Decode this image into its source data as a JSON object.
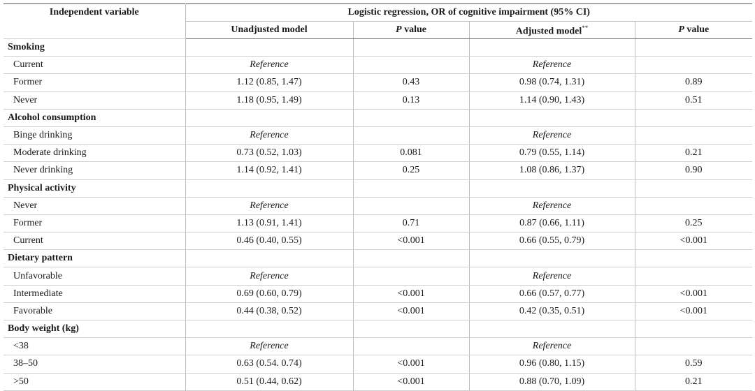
{
  "header": {
    "col_var": "Independent variable",
    "group": "Logistic regression, OR of cognitive impairment (95% CI)",
    "unadjusted": "Unadjusted model",
    "p_letter": "P",
    "p_suffix": " value",
    "adjusted": "Adjusted model",
    "adjusted_mark": "**"
  },
  "rows": [
    {
      "kind": "group",
      "label": "Smoking"
    },
    {
      "kind": "item",
      "label": "Current",
      "unadj": "Reference",
      "p1": "",
      "adj": "Reference",
      "p2": "",
      "ref": true
    },
    {
      "kind": "item",
      "label": "Former",
      "unadj": "1.12 (0.85, 1.47)",
      "p1": "0.43",
      "adj": "0.98 (0.74, 1.31)",
      "p2": "0.89"
    },
    {
      "kind": "item",
      "label": "Never",
      "unadj": "1.18 (0.95, 1.49)",
      "p1": "0.13",
      "adj": "1.14 (0.90, 1.43)",
      "p2": "0.51"
    },
    {
      "kind": "group",
      "label": "Alcohol consumption"
    },
    {
      "kind": "item",
      "label": "Binge drinking",
      "unadj": "Reference",
      "p1": "",
      "adj": "Reference",
      "p2": "",
      "ref": true
    },
    {
      "kind": "item",
      "label": "Moderate drinking",
      "unadj": "0.73 (0.52, 1.03)",
      "p1": "0.081",
      "adj": "0.79 (0.55, 1.14)",
      "p2": "0.21"
    },
    {
      "kind": "item",
      "label": "Never drinking",
      "unadj": "1.14 (0.92, 1.41)",
      "p1": "0.25",
      "adj": "1.08 (0.86, 1.37)",
      "p2": "0.90"
    },
    {
      "kind": "group",
      "label": "Physical activity"
    },
    {
      "kind": "item",
      "label": "Never",
      "unadj": "Reference",
      "p1": "",
      "adj": "Reference",
      "p2": "",
      "ref": true
    },
    {
      "kind": "item",
      "label": "Former",
      "unadj": "1.13 (0.91, 1.41)",
      "p1": "0.71",
      "adj": "0.87 (0.66, 1.11)",
      "p2": "0.25"
    },
    {
      "kind": "item",
      "label": "Current",
      "unadj": "0.46 (0.40, 0.55)",
      "p1": "<0.001",
      "adj": "0.66 (0.55, 0.79)",
      "p2": "<0.001"
    },
    {
      "kind": "group",
      "label": "Dietary pattern"
    },
    {
      "kind": "item",
      "label": "Unfavorable",
      "unadj": "Reference",
      "p1": "",
      "adj": "Reference",
      "p2": "",
      "ref": true
    },
    {
      "kind": "item",
      "label": "Intermediate",
      "unadj": "0.69 (0.60, 0.79)",
      "p1": "<0.001",
      "adj": "0.66 (0.57, 0.77)",
      "p2": "<0.001"
    },
    {
      "kind": "item",
      "label": "Favorable",
      "unadj": "0.44 (0.38, 0.52)",
      "p1": "<0.001",
      "adj": "0.42 (0.35, 0.51)",
      "p2": "<0.001"
    },
    {
      "kind": "group",
      "label": "Body weight (kg)"
    },
    {
      "kind": "item",
      "label": "<38",
      "unadj": "Reference",
      "p1": "",
      "adj": "Reference",
      "p2": "",
      "ref": true
    },
    {
      "kind": "item",
      "label": "38–50",
      "unadj": "0.63 (0.54. 0.74)",
      "p1": "<0.001",
      "adj": "0.96 (0.80, 1.15)",
      "p2": "0.59"
    },
    {
      "kind": "item",
      "label": ">50",
      "unadj": "0.51 (0.44, 0.62)",
      "p1": "<0.001",
      "adj": "0.88 (0.70, 1.09)",
      "p2": "0.21"
    }
  ]
}
